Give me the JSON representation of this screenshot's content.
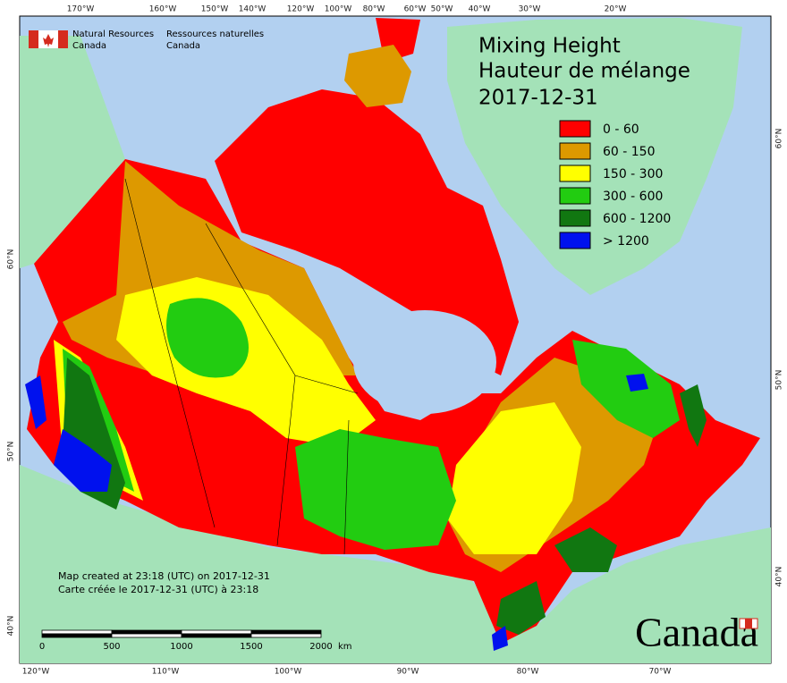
{
  "header": {
    "logo_en": [
      "Natural Resources",
      "Canada"
    ],
    "logo_fr": [
      "Ressources naturelles",
      "Canada"
    ]
  },
  "title": {
    "lines": [
      "Mixing Height",
      "Hauteur de mélange"
    ],
    "date": "2017-12-31"
  },
  "legend": {
    "items": [
      {
        "label": "0 - 60",
        "color": "#ff0000"
      },
      {
        "label": "60 - 150",
        "color": "#dd9900"
      },
      {
        "label": "150 - 300",
        "color": "#ffff00"
      },
      {
        "label": "300 - 600",
        "color": "#22cc11"
      },
      {
        "label": "600 - 1200",
        "color": "#117711"
      },
      {
        "label": "> 1200",
        "color": "#0011ee"
      }
    ]
  },
  "graticule": {
    "top": [
      "170°W",
      "160°W",
      "150°W",
      "140°W",
      "120°W",
      "100°W",
      "80°W",
      "60°W",
      "50°W",
      "40°W",
      "30°W",
      "20°W"
    ],
    "bottom": [
      "120°W",
      "110°W",
      "100°W",
      "90°W",
      "80°W",
      "70°W"
    ],
    "left": [
      "60°N",
      "50°N",
      "40°N"
    ],
    "right": [
      "60°N",
      "50°N",
      "40°N"
    ]
  },
  "scale_bar": {
    "labels": [
      "0",
      "500",
      "1000",
      "1500",
      "2000"
    ],
    "unit": "km"
  },
  "notes": [
    "Map created at 23:18 (UTC) on 2017-12-31",
    "Carte créée le 2017-12-31 (UTC) à 23:18"
  ],
  "wordmark": "Canada"
}
